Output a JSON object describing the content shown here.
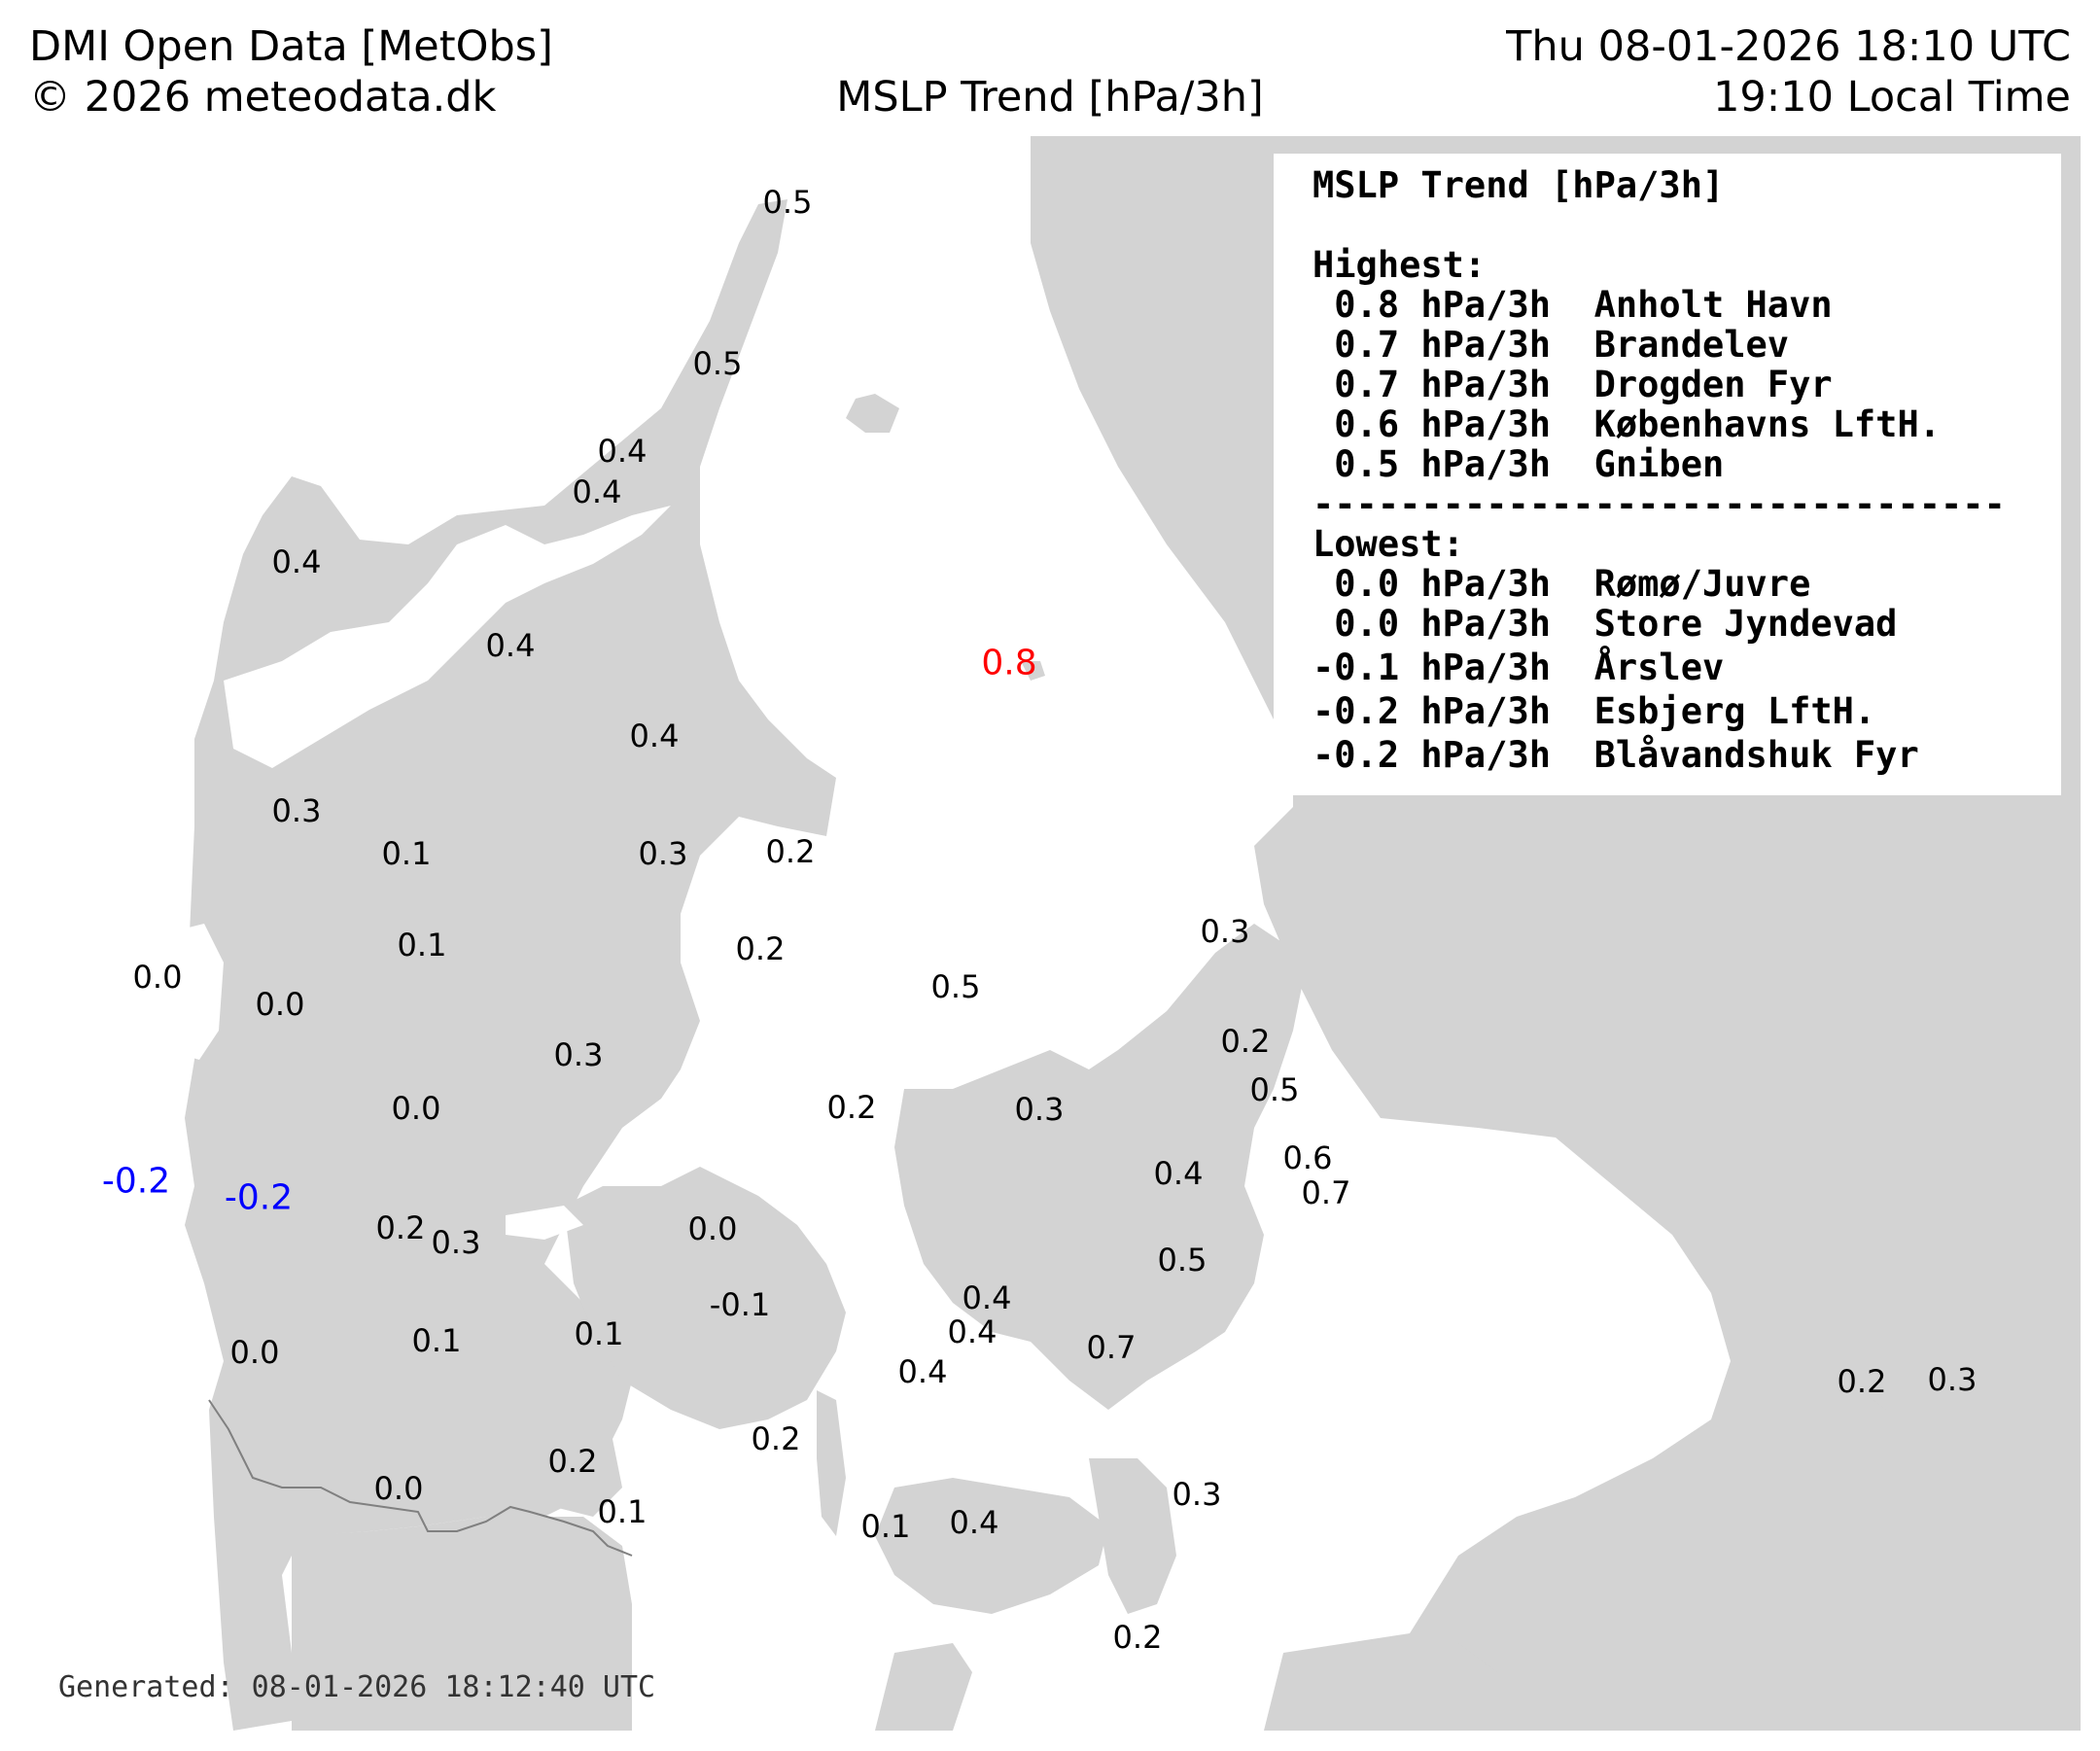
{
  "header": {
    "left_line1": "DMI Open Data [MetObs]",
    "left_line2": "© 2026 meteodata.dk",
    "center": "MSLP Trend [hPa/3h]",
    "right_line1": "Thu 08-01-2026 18:10 UTC",
    "right_line2": "19:10 Local Time"
  },
  "legend": {
    "title": "MSLP Trend [hPa/3h]",
    "highest_label": "Highest:",
    "highest": [
      " 0.8 hPa/3h  Anholt Havn",
      " 0.7 hPa/3h  Brandelev",
      " 0.7 hPa/3h  Drogden Fyr",
      " 0.6 hPa/3h  Københavns LftH.",
      " 0.5 hPa/3h  Gniben"
    ],
    "separator": "--------------------------------",
    "lowest_label": "Lowest:",
    "lowest": [
      " 0.0 hPa/3h  Rømø/Juvre",
      " 0.0 hPa/3h  Store Jyndevad",
      "-0.1 hPa/3h  Årslev",
      "-0.2 hPa/3h  Esbjerg LftH.",
      "-0.2 hPa/3h  Blåvandshuk Fyr"
    ]
  },
  "footer": "Generated: 08-01-2026 18:12:40 UTC",
  "colors": {
    "land": "#d3d3d3",
    "sea": "#ffffff",
    "highest": "#ff0000",
    "lowest": "#0000ff",
    "border": "#808080"
  },
  "stations": [
    "0.5",
    "0.5",
    "0.4",
    "0.4",
    "0.4",
    "0.4",
    "0.4",
    "0.3",
    "0.1",
    "0.3",
    "0.2",
    "0.1",
    "0.2",
    "0.0",
    "0.0",
    "0.3",
    "0.0",
    "0.8",
    "0.3",
    "0.5",
    "0.2",
    "0.3",
    "0.2",
    "0.5",
    "0.6",
    "0.7",
    "0.4",
    "-0.2",
    "-0.2",
    "0.2",
    "0.3",
    "0.0",
    "-0.1",
    "0.5",
    "0.4",
    "0.4",
    "0.7",
    "0.4",
    "0.0",
    "0.1",
    "0.1",
    "0.2",
    "0.2",
    "0.0",
    "0.1",
    "0.1",
    "0.4",
    "0.3",
    "0.2",
    "0.2",
    "0.3"
  ]
}
